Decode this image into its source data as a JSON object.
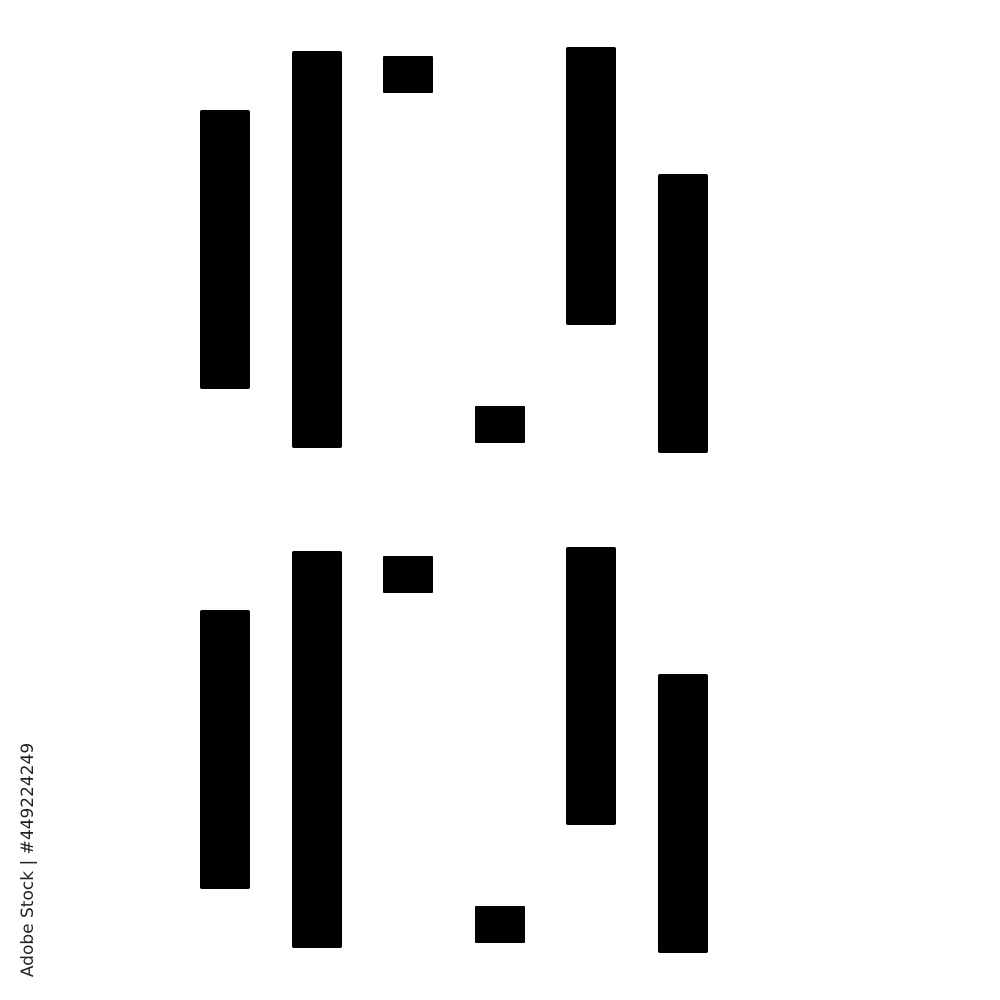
{
  "credit": {
    "text": "Adobe Stock | #449224249"
  }
}
